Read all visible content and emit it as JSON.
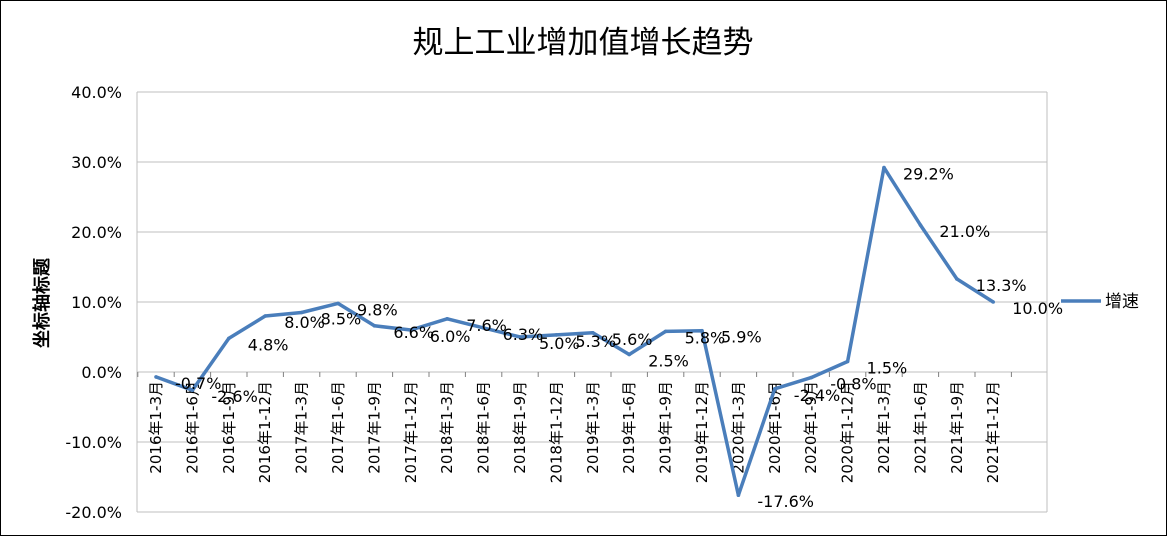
{
  "chart_data": {
    "type": "line",
    "title": "规上工业增加值增长趋势",
    "ylabel": "坐标轴标题",
    "xlabel": "",
    "ylim": [
      -20,
      40
    ],
    "yticks": [
      40,
      30,
      20,
      10,
      0,
      -10,
      -20
    ],
    "ytick_labels": [
      "40.0%",
      "30.0%",
      "20.0%",
      "10.0%",
      "0.0%",
      "-10.0%",
      "-20.0%"
    ],
    "grid": true,
    "legend_position": "right",
    "categories": [
      "2016年1-3月",
      "2016年1-6月",
      "2016年1-9月",
      "2016年1-12月",
      "2017年1-3月",
      "2017年1-6月",
      "2017年1-9月",
      "2017年1-12月",
      "2018年1-3月",
      "2018年1-6月",
      "2018年1-9月",
      "2018年1-12月",
      "2019年1-3月",
      "2019年1-6月",
      "2019年1-9月",
      "2019年1-12月",
      "2020年1-3月",
      "2020年1-6月",
      "2020年1-9月",
      "2020年1-12月",
      "2021年1-3月",
      "2021年1-6月",
      "2021年1-9月",
      "2021年1-12月"
    ],
    "series": [
      {
        "name": "增速",
        "color": "#4a7ebb",
        "values": [
          -0.7,
          -2.6,
          4.8,
          8.0,
          8.5,
          9.8,
          6.6,
          6.0,
          7.6,
          6.3,
          5.0,
          5.3,
          5.6,
          2.5,
          5.8,
          5.9,
          -17.6,
          -2.4,
          -0.8,
          1.5,
          29.2,
          21.0,
          13.3,
          10.0
        ],
        "labels": [
          "-0.7%",
          "-2.6%",
          "4.8%",
          "8.0%",
          "8.5%",
          "9.8%",
          "6.6%",
          "6.0%",
          "7.6%",
          "6.3%",
          "5.0%",
          "5.3%",
          "5.6%",
          "2.5%",
          "5.8%",
          "5.9%",
          "-17.6%",
          "-2.4%",
          "-0.8%",
          "1.5%",
          "29.2%",
          "21.0%",
          "13.3%",
          "10.0%"
        ]
      }
    ]
  }
}
